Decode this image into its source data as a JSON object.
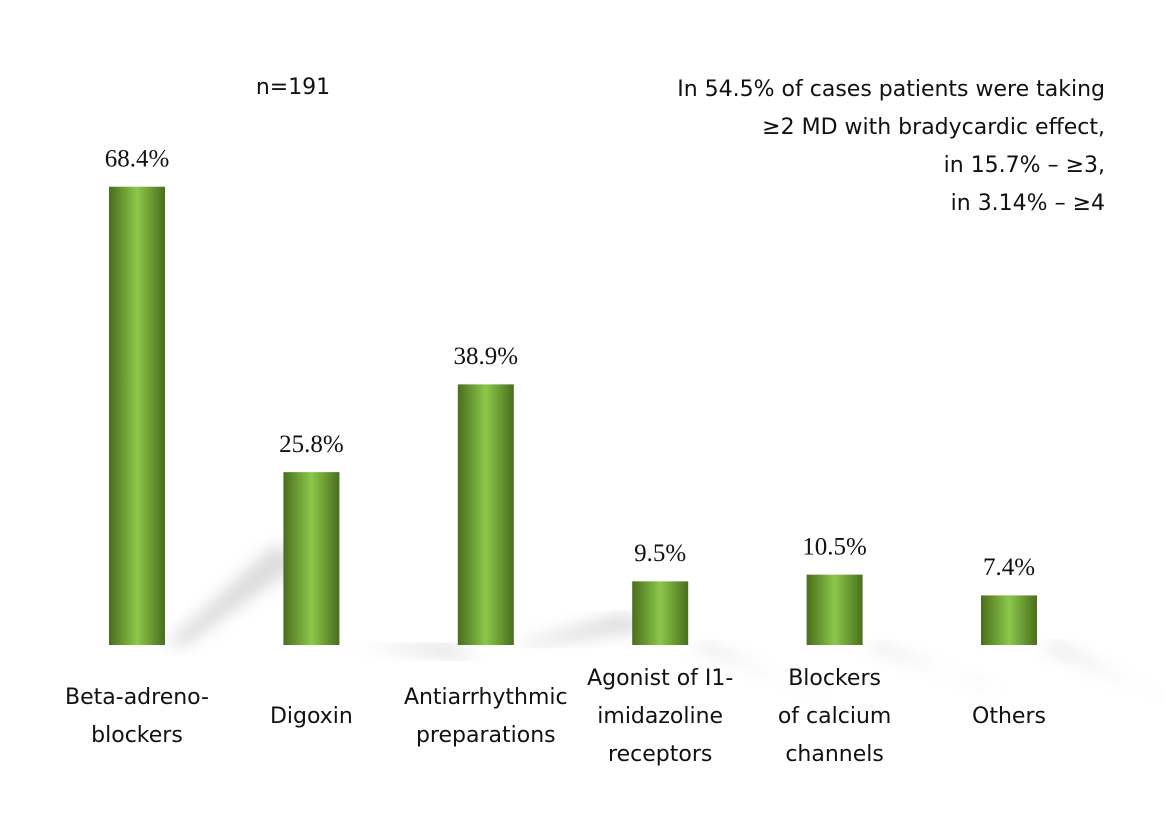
{
  "chart_data": {
    "type": "bar",
    "subtitle": "n=191",
    "annotations": [
      "In 54.5% of cases patients were taking",
      "≥2 MD with bradycardic effect,",
      "in 15.7% – ≥3,",
      "in 3.14% – ≥4"
    ],
    "categories": [
      [
        "Beta-adreno-",
        "blockers"
      ],
      [
        "Digoxin"
      ],
      [
        "Antiarrhythmic",
        "preparations"
      ],
      [
        "Agonist of I1-",
        "imidazoline",
        "receptors"
      ],
      [
        "Blockers",
        "of calcium",
        "channels"
      ],
      [
        "Others"
      ]
    ],
    "values": [
      68.4,
      25.8,
      38.9,
      9.5,
      10.5,
      7.4
    ],
    "value_labels": [
      "68.4%",
      "25.8%",
      "38.9%",
      "9.5%",
      "10.5%",
      "7.4%"
    ],
    "color": "#8cc84b"
  }
}
